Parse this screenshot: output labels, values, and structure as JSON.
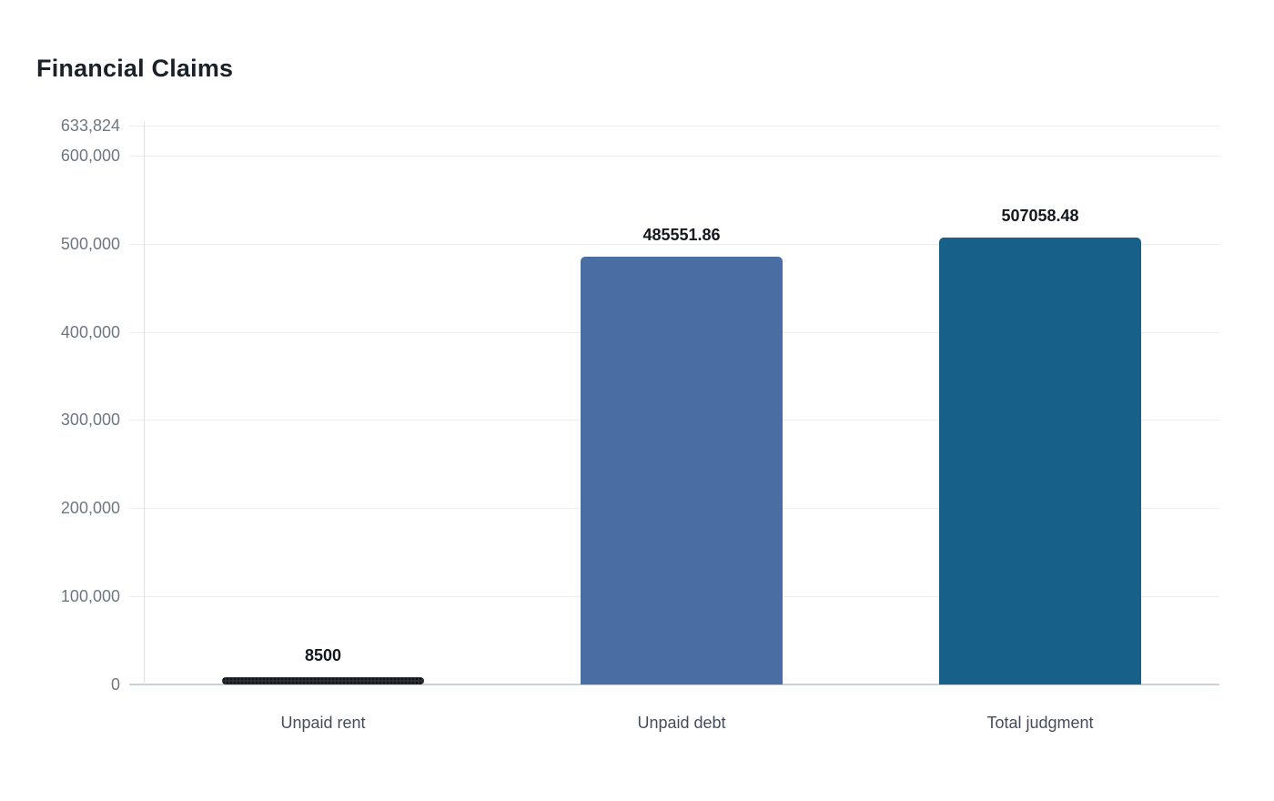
{
  "chart_data": {
    "type": "bar",
    "title": "Financial Claims",
    "categories": [
      "Unpaid rent",
      "Unpaid debt",
      "Total judgment"
    ],
    "values": [
      8500,
      485551.86,
      507058.48
    ],
    "value_labels": [
      "8500",
      "485551.86",
      "507058.48"
    ],
    "bar_colors": [
      "#2b2e33",
      "#4a6da4",
      "#166089"
    ],
    "bar_patterns": [
      "dots",
      "solid",
      "solid"
    ],
    "xlabel": "",
    "ylabel": "",
    "ylim": [
      0,
      633824
    ],
    "yticks": [
      0,
      100000,
      200000,
      300000,
      400000,
      500000,
      600000,
      633824
    ],
    "ytick_labels": [
      "0",
      "100,000",
      "200,000",
      "300,000",
      "400,000",
      "500,000",
      "600,000",
      "633,824"
    ],
    "grid": true,
    "legend": false,
    "legend_position": "none",
    "value_label_color": "#15181d",
    "axis_label_color": "#6f7781",
    "category_label_color": "#454e58",
    "title_color": "#1b2129"
  }
}
